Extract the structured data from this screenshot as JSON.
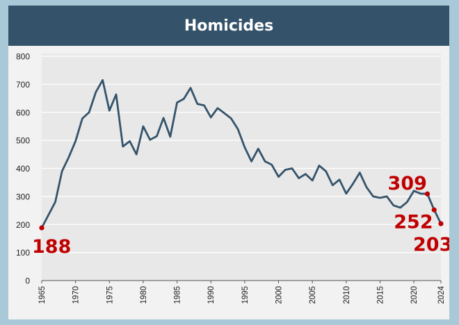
{
  "chart_data": {
    "type": "line",
    "title": "Homicides",
    "xlabel": "",
    "ylabel": "",
    "ylim": [
      0,
      800
    ],
    "xlim": [
      1965,
      2024
    ],
    "yticks": [
      0,
      100,
      200,
      300,
      400,
      500,
      600,
      700,
      800
    ],
    "xticks": [
      1965,
      1970,
      1975,
      1980,
      1985,
      1990,
      1995,
      2000,
      2005,
      2010,
      2015,
      2020,
      2024
    ],
    "grid": true,
    "legend": "none",
    "colors": {
      "line": "#34536a",
      "highlight": "#c00000",
      "title_bar": "#34536a",
      "page": "#a9c8d8",
      "plot_bg": "#e8e8e8"
    },
    "series": [
      {
        "x": [
          1965,
          1966,
          1967,
          1968,
          1969,
          1970,
          1971,
          1972,
          1973,
          1974,
          1975,
          1976,
          1977,
          1978,
          1979,
          1980,
          1981,
          1982,
          1983,
          1984,
          1985,
          1986,
          1987,
          1988,
          1989,
          1990,
          1991,
          1992,
          1993,
          1994,
          1995,
          1996,
          1997,
          1998,
          1999,
          2000,
          2001,
          2002,
          2003,
          2004,
          2005,
          2006,
          2007,
          2008,
          2009,
          2010,
          2011,
          2012,
          2013,
          2014,
          2015,
          2016,
          2017,
          2018,
          2019,
          2020,
          2021,
          2022,
          2023,
          2024
        ],
        "values": [
          188,
          234,
          280,
          390,
          440,
          497,
          578,
          600,
          672,
          715,
          606,
          664,
          478,
          497,
          450,
          550,
          502,
          515,
          580,
          513,
          635,
          648,
          687,
          630,
          625,
          582,
          615,
          597,
          578,
          540,
          475,
          425,
          470,
          425,
          413,
          370,
          395,
          400,
          365,
          380,
          357,
          410,
          390,
          340,
          360,
          310,
          345,
          385,
          333,
          300,
          295,
          300,
          268,
          260,
          280,
          320,
          310,
          309,
          252,
          203
        ]
      }
    ],
    "annotations": [
      {
        "x": 1965,
        "value": 188,
        "label": "188"
      },
      {
        "x": 2022,
        "value": 309,
        "label": "309"
      },
      {
        "x": 2023,
        "value": 252,
        "label": "252"
      },
      {
        "x": 2024,
        "value": 203,
        "label": "203"
      }
    ]
  }
}
